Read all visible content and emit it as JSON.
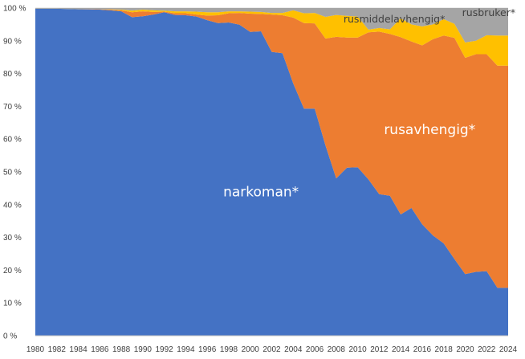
{
  "chart_data": {
    "type": "area",
    "stacked": "percent",
    "title": "",
    "xlabel": "",
    "ylabel": "",
    "ylim": [
      0,
      100
    ],
    "y_ticks": [
      0,
      10,
      20,
      30,
      40,
      50,
      60,
      70,
      80,
      90,
      100
    ],
    "y_tick_suffix": " %",
    "grid": "horizontal",
    "legend": "none",
    "x": [
      1980,
      1981,
      1982,
      1983,
      1984,
      1985,
      1986,
      1987,
      1988,
      1989,
      1990,
      1991,
      1992,
      1993,
      1994,
      1995,
      1996,
      1997,
      1998,
      1999,
      2000,
      2001,
      2002,
      2003,
      2004,
      2005,
      2006,
      2007,
      2008,
      2009,
      2010,
      2011,
      2012,
      2013,
      2014,
      2015,
      2016,
      2017,
      2018,
      2019,
      2020,
      2021,
      2022,
      2023,
      2024
    ],
    "x_tick_labels": [
      "1980",
      "1982",
      "1984",
      "1986",
      "1988",
      "1990",
      "1992",
      "1994",
      "1996",
      "1998",
      "2000",
      "2002",
      "2004",
      "2006",
      "2008",
      "2010",
      "2012",
      "2014",
      "2016",
      "2018",
      "2020",
      "2022",
      "2024"
    ],
    "series": [
      {
        "name": "narkoman*",
        "color": "#4472C4",
        "values": [
          99.8,
          99.8,
          99.8,
          99.7,
          99.6,
          99.6,
          99.5,
          99.3,
          99.0,
          97.2,
          97.5,
          98.0,
          98.7,
          97.9,
          97.8,
          97.4,
          96.3,
          95.4,
          95.6,
          94.9,
          92.7,
          92.9,
          86.6,
          86.2,
          77.0,
          69.3,
          69.3,
          58.1,
          48.0,
          51.3,
          51.4,
          47.7,
          43.2,
          42.7,
          37.0,
          39.0,
          34.0,
          30.6,
          28.2,
          23.4,
          18.8,
          19.5,
          19.7,
          14.6,
          14.6
        ]
      },
      {
        "name": "rusavhengig*",
        "color": "#ED7D31",
        "values": [
          0.0,
          0.0,
          0.0,
          0.0,
          0.0,
          0.1,
          0.1,
          0.2,
          0.3,
          1.5,
          1.5,
          0.8,
          0.2,
          0.5,
          0.6,
          0.6,
          1.4,
          2.4,
          2.8,
          3.6,
          5.6,
          5.3,
          11.4,
          11.6,
          20.1,
          26.1,
          26.0,
          32.6,
          43.2,
          39.7,
          39.6,
          44.9,
          49.6,
          49.4,
          54.1,
          50.8,
          54.6,
          59.9,
          63.4,
          67.5,
          66.0,
          66.4,
          66.2,
          67.8,
          67.8
        ]
      },
      {
        "name": "rusmiddelavhengig*",
        "color": "#FFC000",
        "values": [
          0.0,
          0.0,
          0.0,
          0.0,
          0.0,
          0.0,
          0.0,
          0.1,
          0.2,
          0.5,
          0.5,
          0.5,
          0.3,
          0.6,
          0.6,
          0.9,
          1.0,
          0.9,
          0.6,
          0.5,
          0.6,
          0.6,
          0.5,
          0.7,
          2.2,
          3.0,
          3.2,
          6.6,
          6.7,
          6.6,
          6.4,
          0.8,
          1.1,
          1.4,
          5.8,
          5.2,
          5.8,
          4.5,
          5.0,
          4.3,
          4.7,
          4.1,
          5.8,
          9.2,
          9.2
        ]
      },
      {
        "name": "rusbruker*",
        "color": "#A5A5A5",
        "values": [
          0.2,
          0.2,
          0.2,
          0.3,
          0.4,
          0.3,
          0.4,
          0.4,
          0.5,
          0.8,
          0.5,
          0.7,
          0.8,
          1.0,
          1.0,
          1.1,
          1.3,
          1.3,
          1.0,
          1.0,
          1.1,
          1.2,
          1.5,
          1.5,
          0.7,
          1.6,
          1.5,
          2.7,
          2.1,
          2.4,
          2.6,
          6.6,
          6.1,
          6.5,
          3.1,
          5.0,
          5.6,
          5.0,
          3.4,
          4.8,
          10.5,
          10.0,
          8.3,
          8.4,
          8.4
        ]
      }
    ],
    "annotations": [
      {
        "text": "narkoman*",
        "color": "#ffffff",
        "at_year": 2001,
        "at_percent": 42.5,
        "size": "large"
      },
      {
        "text": "rusavhengig*",
        "color": "#ffffff",
        "at_year": 2016.7,
        "at_percent": 61.5,
        "size": "large"
      },
      {
        "text": "rusmiddelavhengig*",
        "color": "#404040",
        "at_year": 2013.4,
        "at_percent": 95.6,
        "size": "small"
      },
      {
        "text": "rusbruker*",
        "color": "#404040",
        "at_year": 2022.2,
        "at_percent": 97.5,
        "size": "small"
      }
    ]
  }
}
